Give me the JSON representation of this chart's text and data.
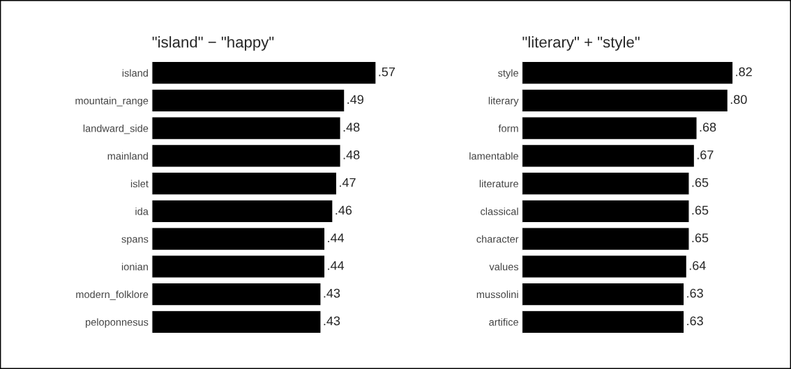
{
  "chart_data": [
    {
      "type": "bar",
      "orientation": "horizontal",
      "title": "\"island\" − \"happy\"",
      "categories": [
        "island",
        "mountain_range",
        "landward_side",
        "mainland",
        "islet",
        "ida",
        "spans",
        "ionian",
        "modern_folklore",
        "peloponnesus"
      ],
      "values": [
        0.57,
        0.49,
        0.48,
        0.48,
        0.47,
        0.46,
        0.44,
        0.44,
        0.43,
        0.43
      ],
      "value_labels": [
        ".57",
        ".49",
        ".48",
        ".48",
        ".47",
        ".46",
        ".44",
        ".44",
        ".43",
        ".43"
      ],
      "color": "#000000",
      "grid": false,
      "legend": false
    },
    {
      "type": "bar",
      "orientation": "horizontal",
      "title": "\"literary\" + \"style\"",
      "categories": [
        "style",
        "literary",
        "form",
        "lamentable",
        "literature",
        "classical",
        "character",
        "values",
        "mussolini",
        "artifice"
      ],
      "values": [
        0.82,
        0.8,
        0.68,
        0.67,
        0.65,
        0.65,
        0.65,
        0.64,
        0.63,
        0.63
      ],
      "value_labels": [
        ".82",
        ".80",
        ".68",
        ".67",
        ".65",
        ".65",
        ".65",
        ".64",
        ".63",
        ".63"
      ],
      "color": "#000000",
      "grid": false,
      "legend": false
    }
  ]
}
